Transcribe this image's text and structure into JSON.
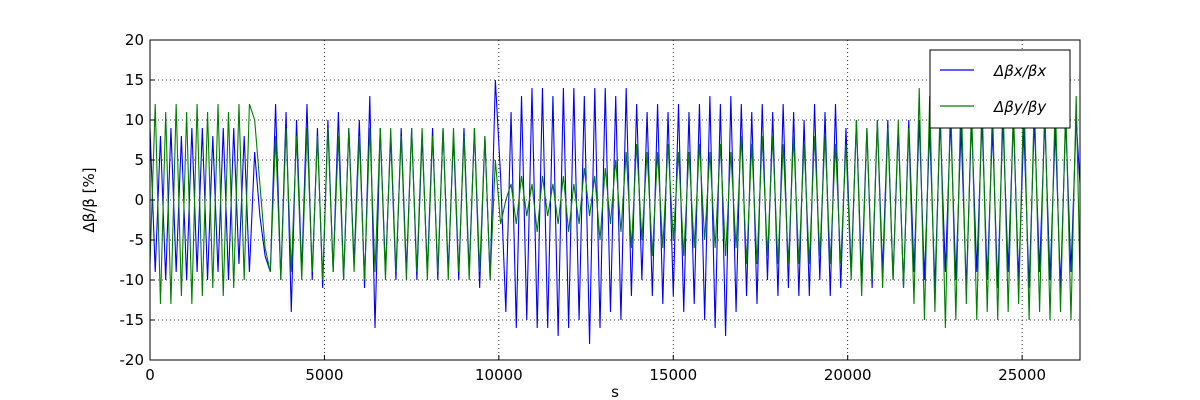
{
  "chart_data": {
    "type": "line",
    "x_label": "s",
    "y_label": "Δβ/β [%]",
    "xlim": [
      0,
      26659
    ],
    "ylim": [
      -20,
      20
    ],
    "xticks": [
      0,
      5000,
      10000,
      15000,
      20000,
      25000
    ],
    "yticks": [
      -20,
      -15,
      -10,
      -5,
      0,
      5,
      10,
      15,
      20
    ],
    "grid": true,
    "legend": "upper right",
    "x": [
      0,
      150,
      300,
      450,
      600,
      750,
      900,
      1050,
      1200,
      1350,
      1500,
      1650,
      1800,
      1950,
      2100,
      2250,
      2400,
      2550,
      2700,
      2850,
      3000,
      3150,
      3300,
      3450,
      3600,
      3750,
      3900,
      4050,
      4200,
      4350,
      4500,
      4650,
      4800,
      4950,
      5100,
      5250,
      5400,
      5550,
      5700,
      5850,
      6000,
      6150,
      6300,
      6450,
      6600,
      6750,
      6900,
      7050,
      7200,
      7350,
      7500,
      7650,
      7800,
      7950,
      8100,
      8250,
      8400,
      8550,
      8700,
      8850,
      9000,
      9150,
      9300,
      9450,
      9600,
      9750,
      9900,
      10050,
      10200,
      10350,
      10500,
      10650,
      10800,
      10950,
      11100,
      11250,
      11400,
      11550,
      11700,
      11850,
      12000,
      12150,
      12300,
      12450,
      12600,
      12750,
      12900,
      13050,
      13200,
      13350,
      13500,
      13650,
      13800,
      13950,
      14100,
      14250,
      14400,
      14550,
      14700,
      14850,
      15000,
      15150,
      15300,
      15450,
      15600,
      15750,
      15900,
      16050,
      16200,
      16350,
      16500,
      16650,
      16800,
      16950,
      17100,
      17250,
      17400,
      17550,
      17700,
      17850,
      18000,
      18150,
      18300,
      18450,
      18600,
      18750,
      18900,
      19050,
      19200,
      19350,
      19500,
      19650,
      19800,
      19950,
      20100,
      20250,
      20400,
      20550,
      20700,
      20850,
      21000,
      21150,
      21300,
      21450,
      21600,
      21750,
      21900,
      22050,
      22200,
      22350,
      22500,
      22650,
      22800,
      22950,
      23100,
      23250,
      23400,
      23550,
      23700,
      23850,
      24000,
      24150,
      24300,
      24450,
      24600,
      24750,
      24900,
      25050,
      25200,
      25350,
      25500,
      25650,
      25800,
      25950,
      26100,
      26250,
      26400,
      26550,
      26659
    ],
    "series": [
      {
        "name": "Δβx/βx",
        "color": "#0000ff",
        "values": [
          9,
          -9,
          8,
          -10,
          9,
          -9,
          8,
          -10,
          9,
          -9,
          9,
          -10,
          8,
          -9,
          9,
          -10,
          9,
          -8,
          8,
          -9,
          6,
          -2,
          -7,
          -9,
          12,
          -10,
          11,
          -14,
          10,
          -9,
          12,
          -10,
          9,
          -11,
          10,
          -9,
          11,
          -10,
          9,
          -8,
          10,
          -11,
          13,
          -16,
          9,
          -9,
          8,
          -10,
          9,
          -9,
          9,
          -10,
          8,
          -9,
          9,
          -10,
          9,
          -9,
          8,
          -10,
          9,
          -9,
          9,
          -11,
          8,
          -10,
          15,
          3,
          -14,
          11,
          -16,
          13,
          -15,
          14,
          -16,
          14,
          -16,
          13,
          -17,
          14,
          -16,
          14,
          -15,
          13,
          -18,
          14,
          -16,
          14,
          -14,
          13,
          -15,
          14,
          -12,
          12,
          -10,
          11,
          -12,
          12,
          -13,
          11,
          -12,
          12,
          -14,
          11,
          -13,
          12,
          -15,
          13,
          -16,
          12,
          -17,
          13,
          -14,
          12,
          -12,
          11,
          -13,
          12,
          -10,
          11,
          -12,
          12,
          -11,
          11,
          -12,
          10,
          -12,
          12,
          -10,
          11,
          -12,
          12,
          -11,
          9,
          -9,
          10,
          -10,
          9,
          -11,
          10,
          -9,
          10,
          -10,
          9,
          -11,
          10,
          -9,
          10,
          -10,
          9,
          -11,
          10,
          -9,
          10,
          -10,
          9,
          -11,
          10,
          -9,
          10,
          -10,
          9,
          -11,
          10,
          -9,
          10,
          -10,
          9,
          -11,
          10,
          -9,
          10,
          -10,
          9,
          -11,
          10,
          -9,
          10,
          2
        ]
      },
      {
        "name": "Δβy/βy",
        "color": "#008000",
        "values": [
          -8,
          12,
          -13,
          11,
          -13,
          12,
          -12,
          11,
          -13,
          12,
          -12,
          11,
          -11,
          12,
          -12,
          11,
          -11,
          12,
          -10,
          12,
          10,
          2,
          -6,
          -9,
          8,
          -10,
          9,
          -9,
          8,
          -10,
          9,
          -9,
          8,
          -10,
          9,
          -9,
          8,
          -10,
          9,
          -9,
          8,
          -10,
          9,
          -9,
          9,
          -10,
          9,
          -9,
          8,
          -10,
          9,
          -9,
          9,
          -10,
          8,
          -9,
          9,
          -10,
          9,
          -9,
          8,
          -10,
          9,
          -9,
          8,
          -10,
          5,
          -3,
          0,
          2,
          -3,
          3,
          -2,
          2,
          -4,
          3,
          -2,
          2,
          -3,
          3,
          -4,
          2,
          -3,
          4,
          -2,
          3,
          -5,
          4,
          -3,
          5,
          -4,
          6,
          -6,
          7,
          -5,
          6,
          -7,
          6,
          -6,
          7,
          -5,
          6,
          -7,
          6,
          -6,
          7,
          -5,
          6,
          -6,
          7,
          -7,
          6,
          -6,
          8,
          -8,
          7,
          -8,
          8,
          -7,
          8,
          -8,
          7,
          -8,
          8,
          -8,
          7,
          -8,
          8,
          -7,
          8,
          -8,
          7,
          -8,
          7,
          -10,
          10,
          -12,
          9,
          -10,
          10,
          -11,
          9,
          -10,
          10,
          -11,
          9,
          -13,
          14,
          -15,
          13,
          -14,
          12,
          -16,
          13,
          -15,
          14,
          -13,
          12,
          -15,
          13,
          -14,
          12,
          -15,
          13,
          -14,
          12,
          -13,
          14,
          -15,
          13,
          -14,
          12,
          -15,
          13,
          -14,
          12,
          -15,
          13,
          -10
        ]
      }
    ]
  }
}
